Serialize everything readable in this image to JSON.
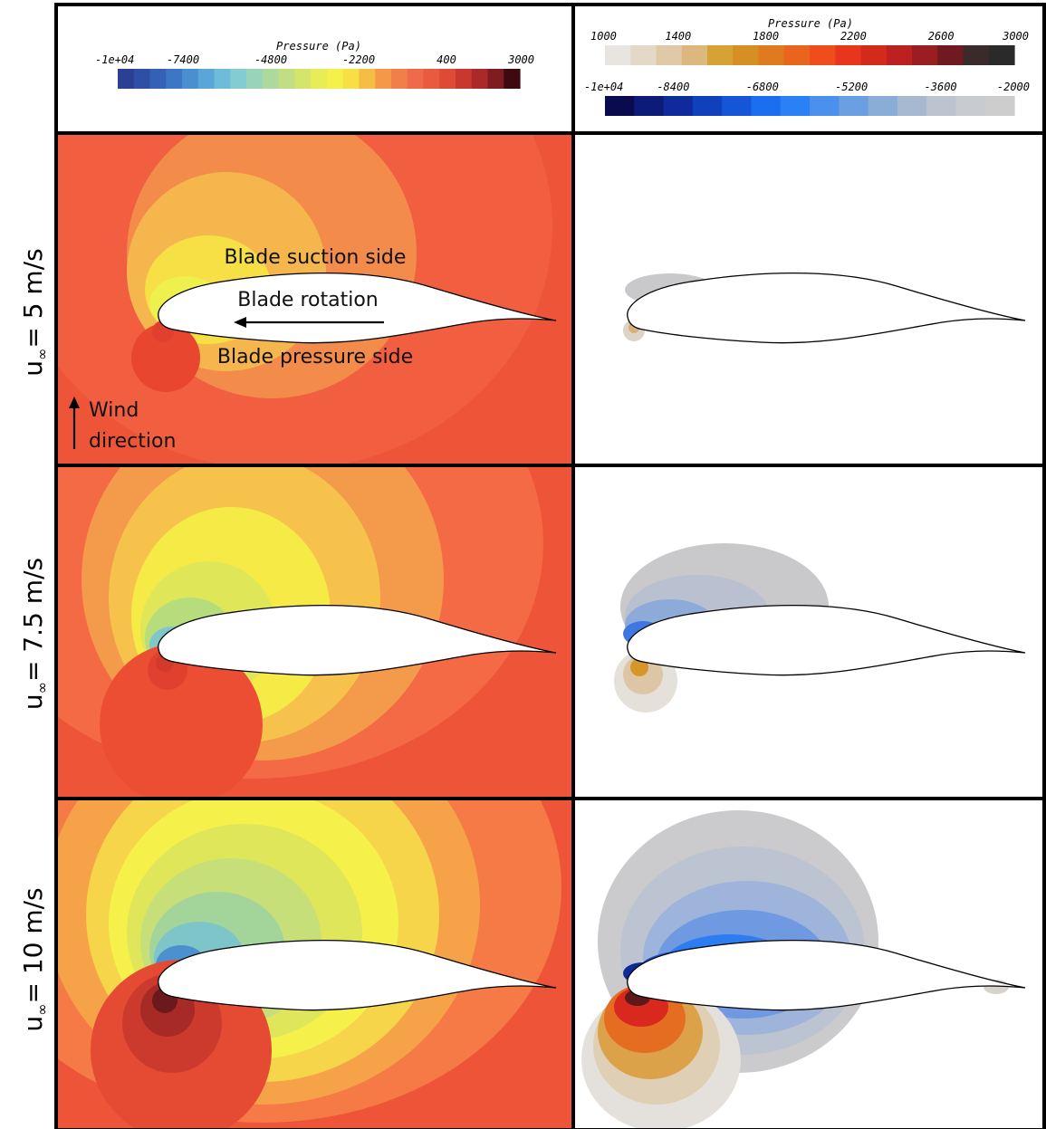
{
  "figure": {
    "legend_left": {
      "title": "Pressure (Pa)",
      "ticks": [
        "-1e+04",
        "-7400",
        "-4800",
        "-2200",
        "400",
        "3000"
      ],
      "colors": [
        "#2b3f93",
        "#2f4fa6",
        "#3461b7",
        "#3c76c4",
        "#4a8fd0",
        "#5aa6d8",
        "#6dbcd9",
        "#83ccd1",
        "#9ad4b8",
        "#aed99c",
        "#c2de82",
        "#d5e46a",
        "#e8ec57",
        "#f6f04a",
        "#f7e046",
        "#f6bd45",
        "#f49a46",
        "#f07f49",
        "#ee6a4a",
        "#e95a3f",
        "#de4a36",
        "#c9382f",
        "#ab2a29",
        "#7e1c1f",
        "#3e0a10"
      ]
    },
    "legend_right_top": {
      "title": "Pressure (Pa)",
      "ticks": [
        "1000",
        "1400",
        "1800",
        "2200",
        "2600",
        "3000"
      ],
      "colors": [
        "#e8e4e0",
        "#e4d8c8",
        "#e0c9a6",
        "#dcb77e",
        "#d6a233",
        "#d68f22",
        "#e07a1e",
        "#e9641c",
        "#ef4e1c",
        "#e7361b",
        "#d42a1c",
        "#bd2020",
        "#9a1d22",
        "#6e1a20",
        "#3a2a2a",
        "#2a2a2a"
      ]
    },
    "legend_right_bottom": {
      "ticks": [
        "-1e+04",
        "-8400",
        "-6800",
        "-5200",
        "-3600",
        "-2000"
      ],
      "colors": [
        "#0a0b4f",
        "#0c1a78",
        "#0e2a9b",
        "#1140bd",
        "#1556d9",
        "#1a6ff0",
        "#2a80f5",
        "#4a90ec",
        "#6a9fe2",
        "#8aadd8",
        "#a6b9d1",
        "#bcc4cf",
        "#c8cbd0",
        "#cdcdcd"
      ]
    },
    "rows": [
      {
        "label_prefix": "u",
        "label_sub": "∞",
        "label_rest": "= 5 m/s",
        "annotations": {
          "suction": "Blade suction side",
          "rotation": "Blade rotation",
          "pressure": "Blade pressure side",
          "wind_1": "Wind",
          "wind_2": "direction"
        }
      },
      {
        "label_prefix": "u",
        "label_sub": "∞",
        "label_rest": "= 7.5 m/s"
      },
      {
        "label_prefix": "u",
        "label_sub": "∞",
        "label_rest": "= 10 m/s"
      }
    ]
  }
}
